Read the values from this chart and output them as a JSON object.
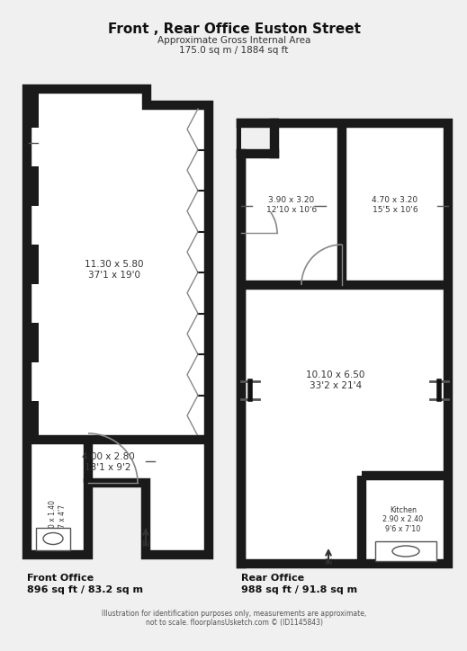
{
  "title": "Front , Rear Office Euston Street",
  "subtitle1": "Approximate Gross Internal Area",
  "subtitle2": "175.0 sq m / 1884 sq ft",
  "front_office_label": "Front Office",
  "front_office_area": "896 sq ft / 83.2 sq m",
  "rear_office_label": "Rear Office",
  "rear_office_area": "988 sq ft / 91.8 sq m",
  "disclaimer": "Illustration for identification purposes only, measurements are approximate,\nnot to scale. floorplansUsketch.com © (ID1145843)",
  "wall_color": "#1a1a1a",
  "bg_color": "#f0f0f0",
  "front_room1_label": "11.30 x 5.80\n37'1 x 19'0",
  "front_room2_label": "4.00 x 2.80\n13'1 x 9'2",
  "front_small_label": "2.30 x 1.40\n7'7 x 4'7",
  "rear_room1_label": "3.90 x 3.20\n12'10 x 10'6",
  "rear_room2_label": "4.70 x 3.20\n15'5 x 10'6",
  "rear_main_label": "10.10 x 6.50\n33'2 x 21'4",
  "kitchen_label": "Kitchen\n2.90 x 2.40\n9'6 x 7'10"
}
